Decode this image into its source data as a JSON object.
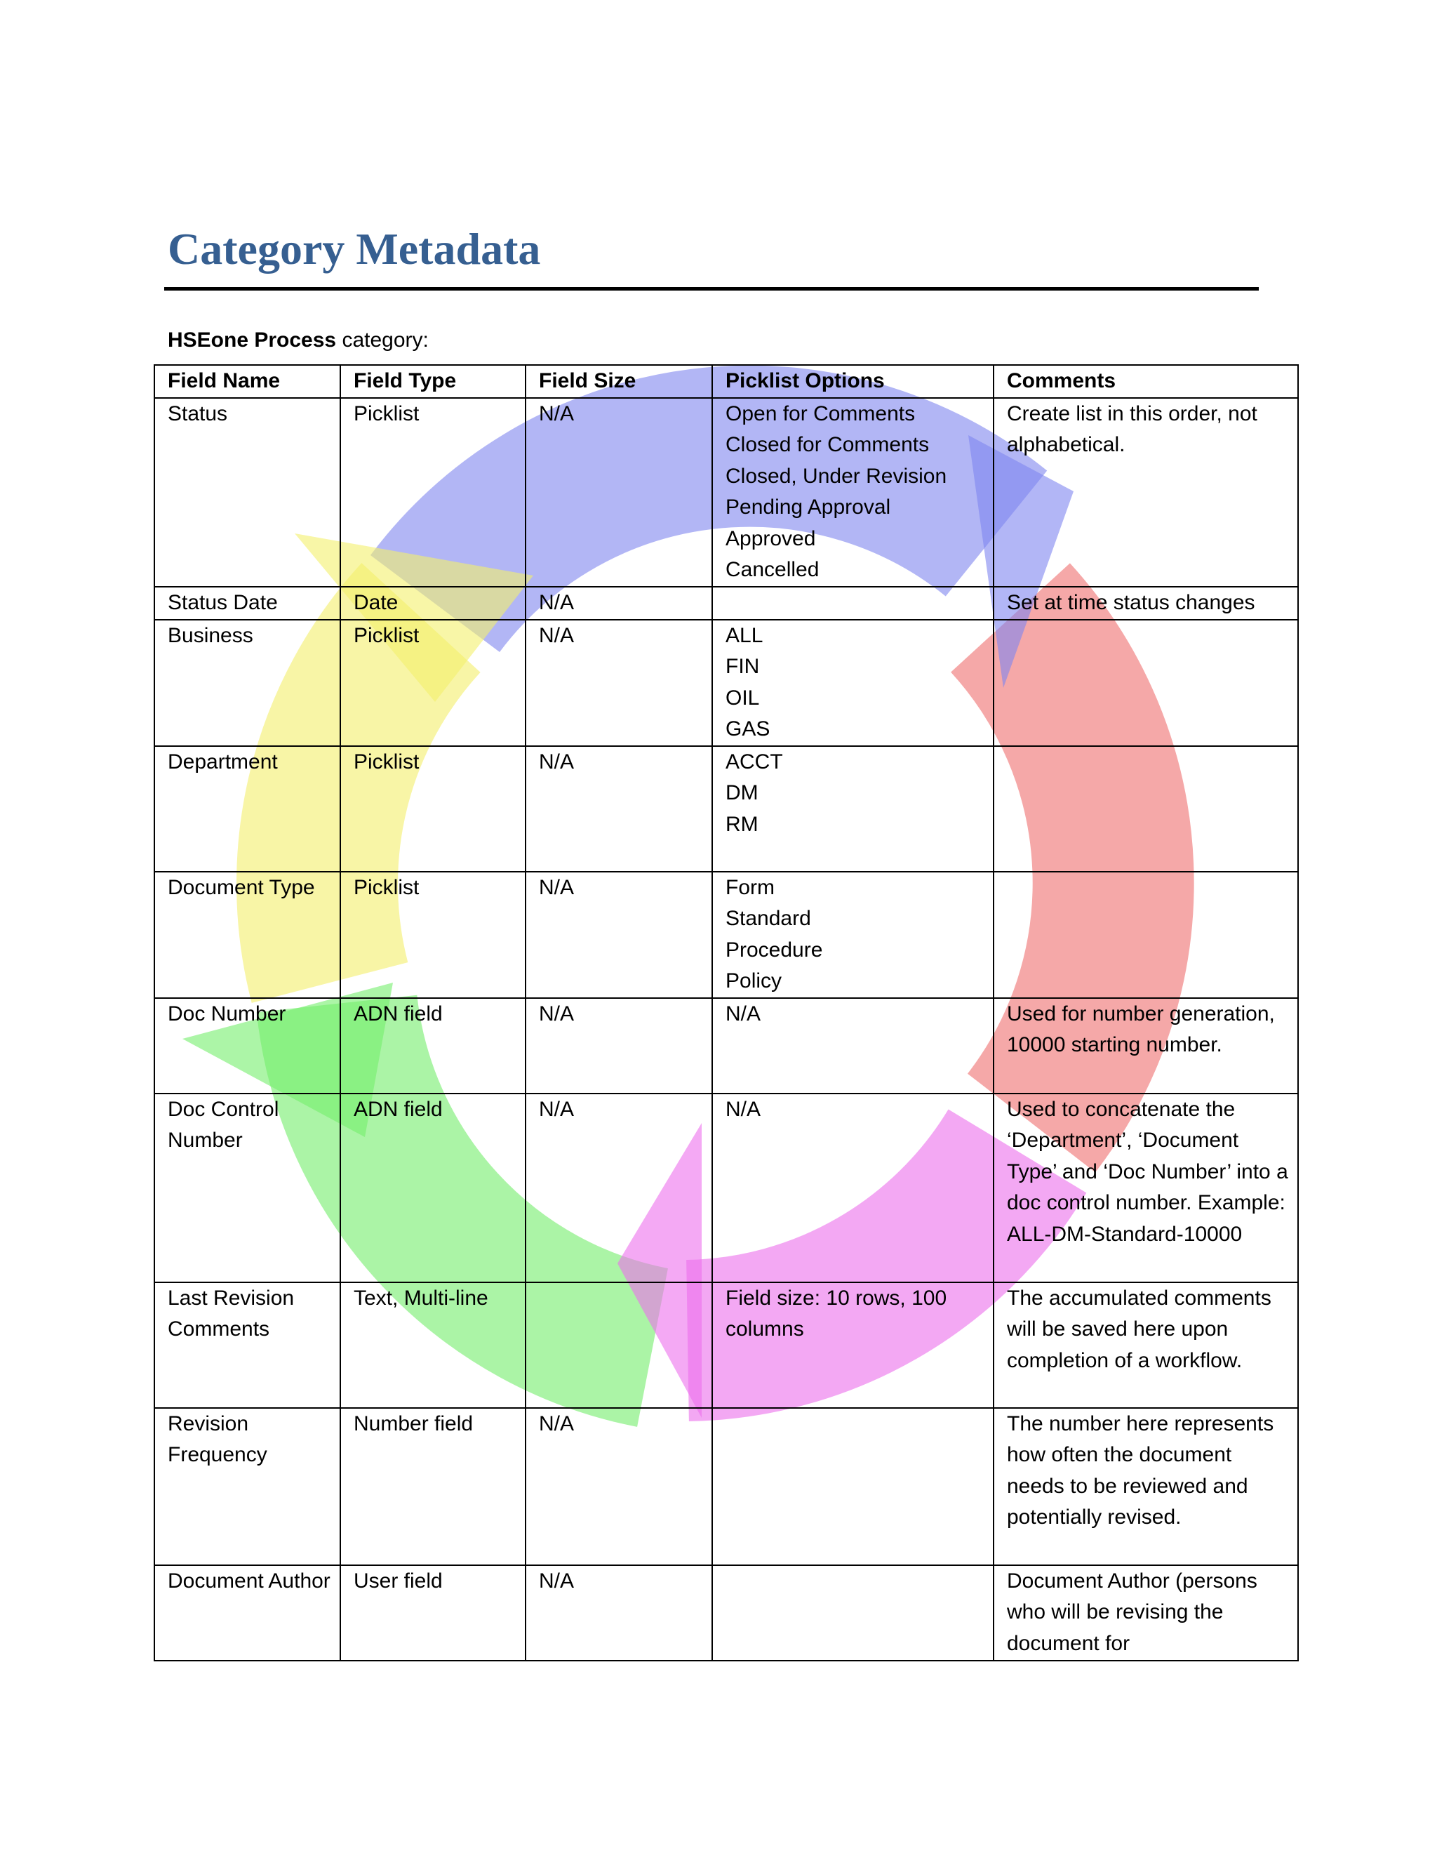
{
  "header": {
    "title": "Category Metadata",
    "subtitle_bold": "HSEone Process",
    "subtitle_rest": " category:"
  },
  "table": {
    "columns": [
      "Field Name",
      "Field Type",
      "Field Size",
      "Picklist Options",
      "Comments"
    ],
    "rows": [
      [
        "Status",
        "Picklist",
        "N/A",
        [
          "Open for Comments",
          "Closed for Comments",
          "Closed, Under Revision",
          "Pending Approval",
          "Approved",
          "Cancelled"
        ],
        "Create list in this order, not alphabetical."
      ],
      [
        "Status Date",
        "Date",
        "N/A",
        [],
        "Set at time status changes"
      ],
      [
        "Business",
        "Picklist",
        "N/A",
        [
          "ALL",
          "FIN",
          "OIL",
          "GAS"
        ],
        null
      ],
      [
        "Department",
        "Picklist",
        "N/A",
        [
          "ACCT",
          "DM",
          "RM"
        ],
        null
      ],
      [
        "Document Type",
        "Picklist",
        "N/A",
        [
          "Form",
          "Standard",
          "Procedure",
          "Policy"
        ],
        null
      ],
      [
        "Doc Number",
        "ADN field",
        "N/A",
        [
          "N/A"
        ],
        "Used for number generation, 10000 starting number."
      ],
      [
        "Doc Control Number",
        "ADN field",
        "N/A",
        [
          "N/A"
        ],
        "Used to concatenate the ‘Department’, ‘Document Type’ and ‘Doc Number’ into a doc control number. Example: ALL-DM-Standard-10000"
      ],
      [
        "Last Revision Comments",
        "Text, Multi-line",
        null,
        [
          "Field size: 10 rows, 100 columns"
        ],
        "The accumulated comments will be saved here upon completion of a workflow."
      ],
      [
        "Revision Frequency",
        "Number field",
        "N/A",
        [],
        "The number here represents how often the document needs to be reviewed and potentially revised."
      ],
      [
        "Document Author",
        "User field",
        "N/A",
        [],
        "Document Author (persons who will be revising the document for"
      ]
    ]
  }
}
